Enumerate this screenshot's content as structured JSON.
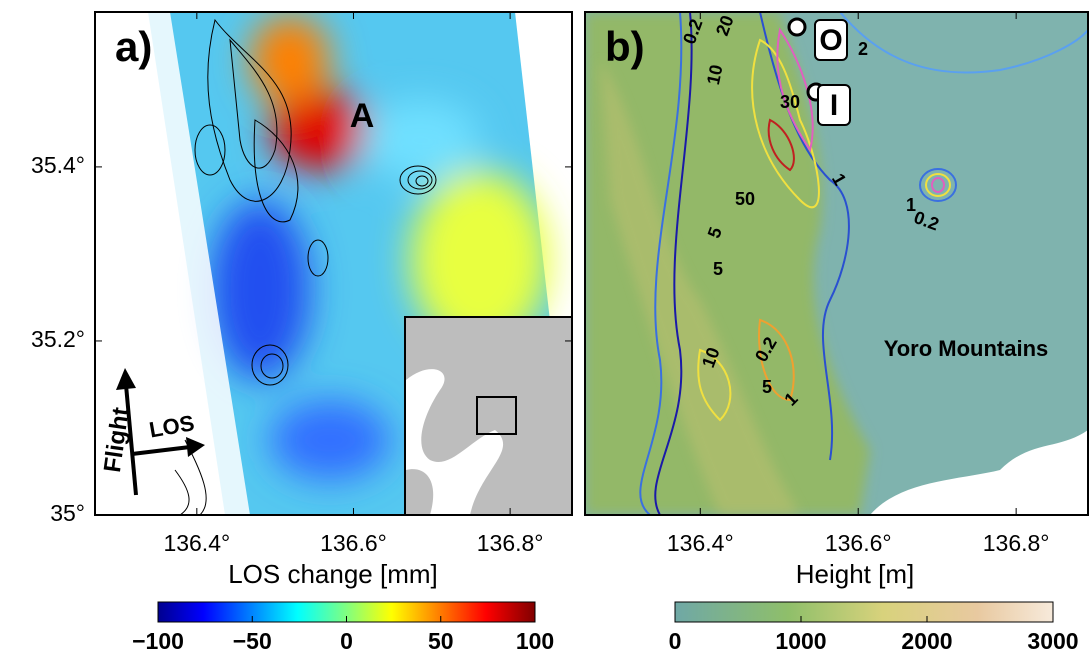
{
  "panel_a": {
    "label": "a)",
    "feature_label": "A",
    "xlabel": "LOS change [mm]",
    "xlim": [
      136.27,
      136.879
    ],
    "ylim": [
      35,
      35.578
    ],
    "xticks": [
      {
        "value": 136.4,
        "label": "136.4°"
      },
      {
        "value": 136.6,
        "label": "136.6°"
      },
      {
        "value": 136.8,
        "label": "136.8°"
      }
    ],
    "yticks": [
      {
        "value": 35,
        "label": "35°"
      },
      {
        "value": 35.2,
        "label": "35.2°"
      },
      {
        "value": 35.4,
        "label": "35.4°"
      }
    ],
    "arrows": {
      "flight": "Flight",
      "los": "LOS"
    },
    "colorbar": {
      "lim": [
        -100,
        100
      ],
      "ticks": [
        {
          "value": -100,
          "label": "−100"
        },
        {
          "value": -50,
          "label": "−50"
        },
        0,
        50,
        100
      ]
    }
  },
  "panel_b": {
    "label": "b)",
    "xlabel": "Height [m]",
    "region_label": "Yoro Mountains",
    "xlim": [
      136.254,
      136.891
    ],
    "xticks": [
      {
        "value": 136.4,
        "label": "136.4°"
      },
      {
        "value": 136.6,
        "label": "136.6°"
      },
      {
        "value": 136.8,
        "label": "136.8°"
      }
    ],
    "markers": [
      "O",
      "I"
    ],
    "contour_labels": [
      "0.2",
      "20",
      "10",
      "2",
      "30",
      "1",
      "50",
      "1",
      "0.2",
      "5",
      "5",
      "0.2",
      "10",
      "5",
      "1"
    ],
    "colorbar": {
      "lim": [
        0,
        3000
      ],
      "ticks": [
        0,
        1000,
        2000,
        3000
      ]
    }
  }
}
